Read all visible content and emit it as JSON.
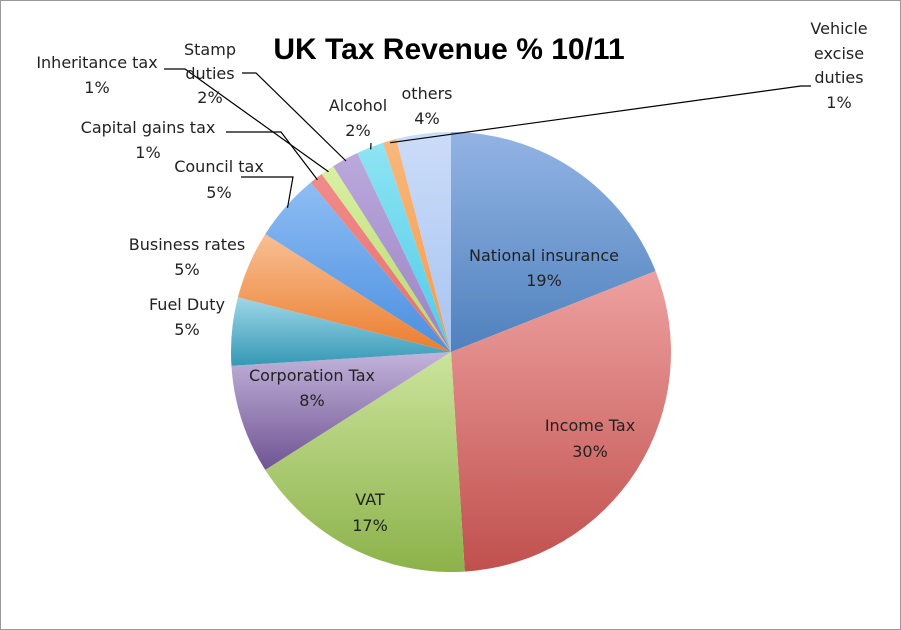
{
  "chart_data": {
    "type": "pie",
    "title": "UK Tax Revenue % 10/11",
    "start_angle_deg": 0,
    "direction": "clockwise",
    "slices": [
      {
        "name": "National insurance",
        "value": 19,
        "label": "19%",
        "color": "#4f81bd",
        "light": "#93b4e4"
      },
      {
        "name": "Income Tax",
        "value": 30,
        "label": "30%",
        "color": "#c0504d",
        "light": "#eda1a0"
      },
      {
        "name": "VAT",
        "value": 17,
        "label": "17%",
        "color": "#8cb24a",
        "light": "#cbe49c"
      },
      {
        "name": "Corporation Tax",
        "value": 8,
        "label": "8%",
        "color": "#6f5492",
        "light": "#c3b3db"
      },
      {
        "name": "Fuel Duty",
        "value": 5,
        "label": "5%",
        "color": "#3498b5",
        "light": "#9fd7e8"
      },
      {
        "name": "Business rates",
        "value": 5,
        "label": "5%",
        "color": "#ec7d2e",
        "light": "#f8bf93"
      },
      {
        "name": "Council tax",
        "value": 5,
        "label": "5%",
        "color": "#4a8fde",
        "light": "#8ebdf4"
      },
      {
        "name": "Capital gains tax",
        "value": 1,
        "label": "1%",
        "color": "#e66f6c",
        "light": "#f08c8a"
      },
      {
        "name": "Inheritance tax",
        "value": 1,
        "label": "1%",
        "color": "#b5d86a",
        "light": "#d9f0a3"
      },
      {
        "name": "Stamp duties",
        "value": 2,
        "label": "2%",
        "color": "#9a82c4",
        "light": "#bba9dc"
      },
      {
        "name": "Alcohol",
        "value": 2,
        "label": "2%",
        "color": "#4fcbe8",
        "light": "#8ee4f4"
      },
      {
        "name": "Vehicle excise duties",
        "value": 1,
        "label": "1%",
        "color": "#f59a4a",
        "light": "#f8b87d"
      },
      {
        "name": "others",
        "value": 4,
        "label": "4%",
        "color": "#a8c4f2",
        "light": "#cbdcf8"
      }
    ]
  }
}
